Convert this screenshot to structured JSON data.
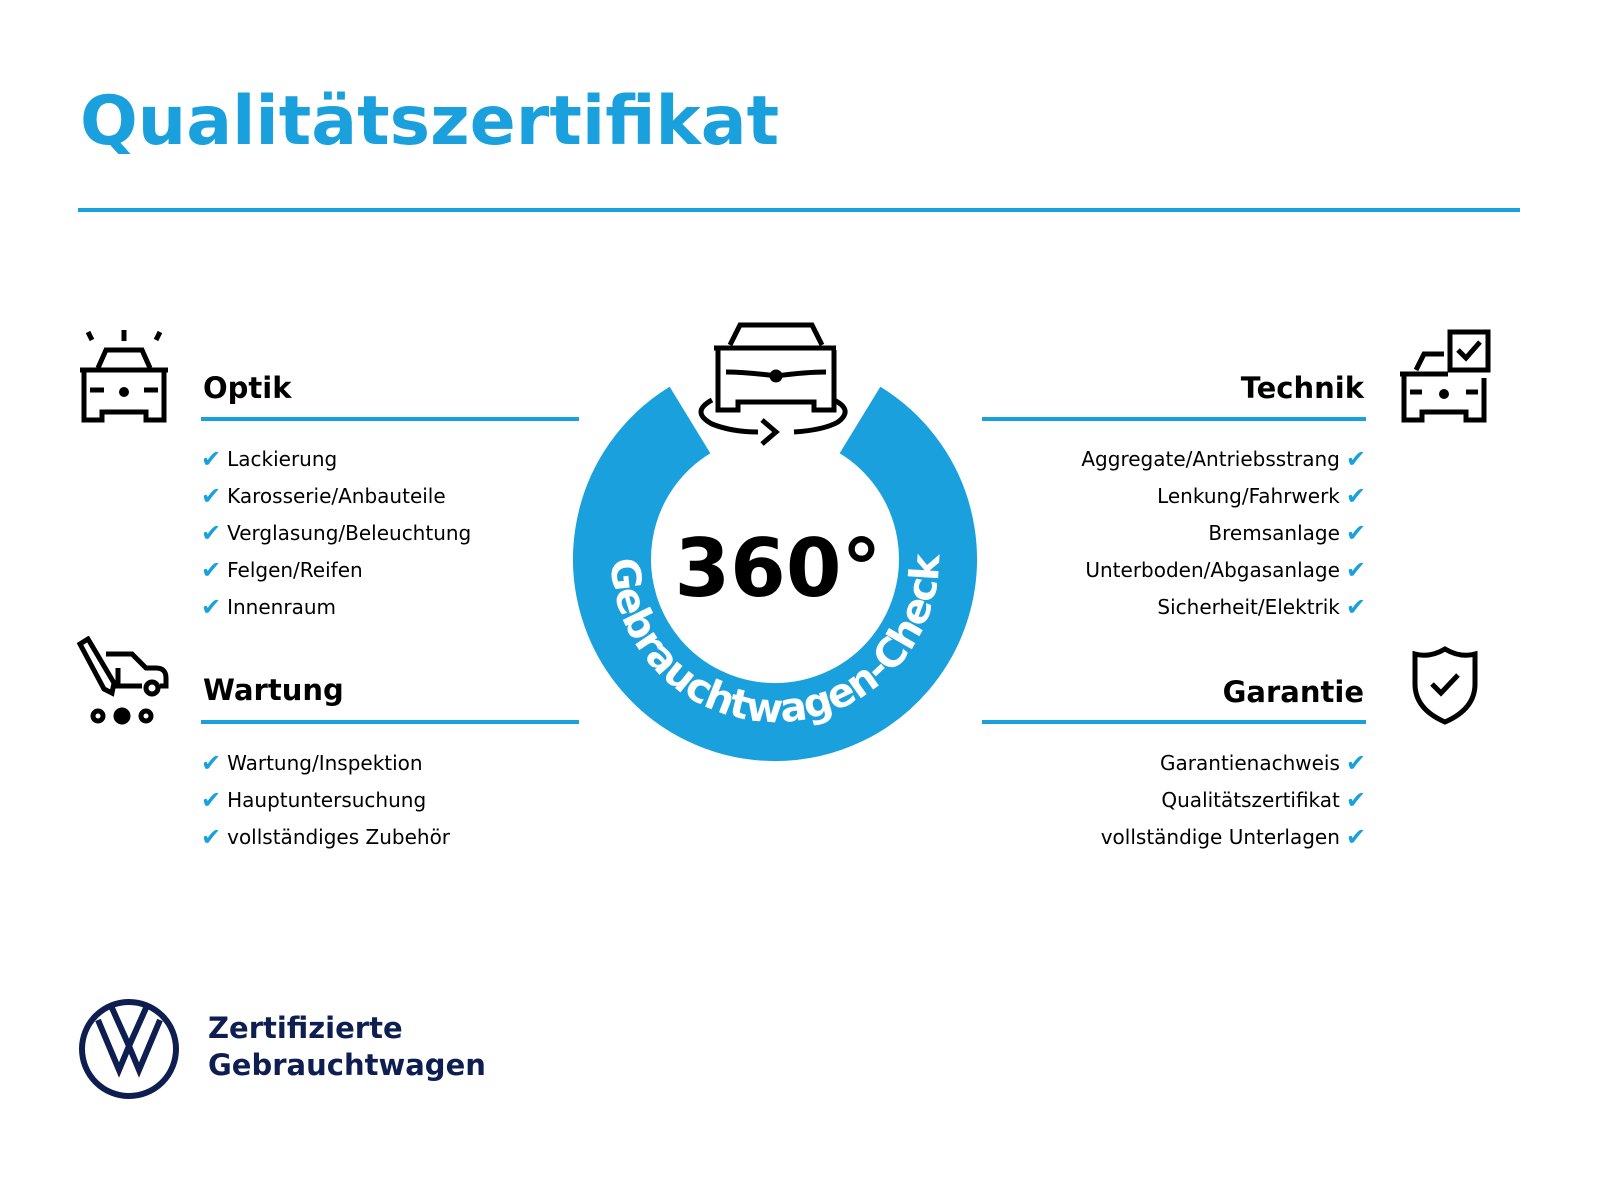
{
  "title": "Qualitätszertifikat",
  "center": {
    "big": "360°",
    "ring_text": "Gebrauchtwagen-Check"
  },
  "sections": {
    "optik": {
      "title": "Optik",
      "items": [
        "Lackierung",
        "Karosserie/Anbauteile",
        "Verglasung/Beleuchtung",
        "Felgen/Reifen",
        "Innenraum"
      ]
    },
    "wartung": {
      "title": "Wartung",
      "items": [
        "Wartung/Inspektion",
        "Hauptuntersuchung",
        "vollständiges Zubehör"
      ]
    },
    "technik": {
      "title": "Technik",
      "items": [
        "Aggregate/Antriebsstrang",
        "Lenkung/Fahrwerk",
        "Bremsanlage",
        "Unterboden/Abgasanlage",
        "Sicherheit/Elektrik"
      ]
    },
    "garantie": {
      "title": "Garantie",
      "items": [
        "Garantienachweis",
        "Qualitätszertifikat",
        "vollständige Unterlagen"
      ]
    }
  },
  "check_glyph": "✔",
  "footer": {
    "line1": "Zertifizierte",
    "line2": "Gebrauchtwagen",
    "logo": "VW"
  },
  "colors": {
    "accent": "#1aa1dd",
    "navy": "#0f1e50",
    "text": "#000000"
  }
}
